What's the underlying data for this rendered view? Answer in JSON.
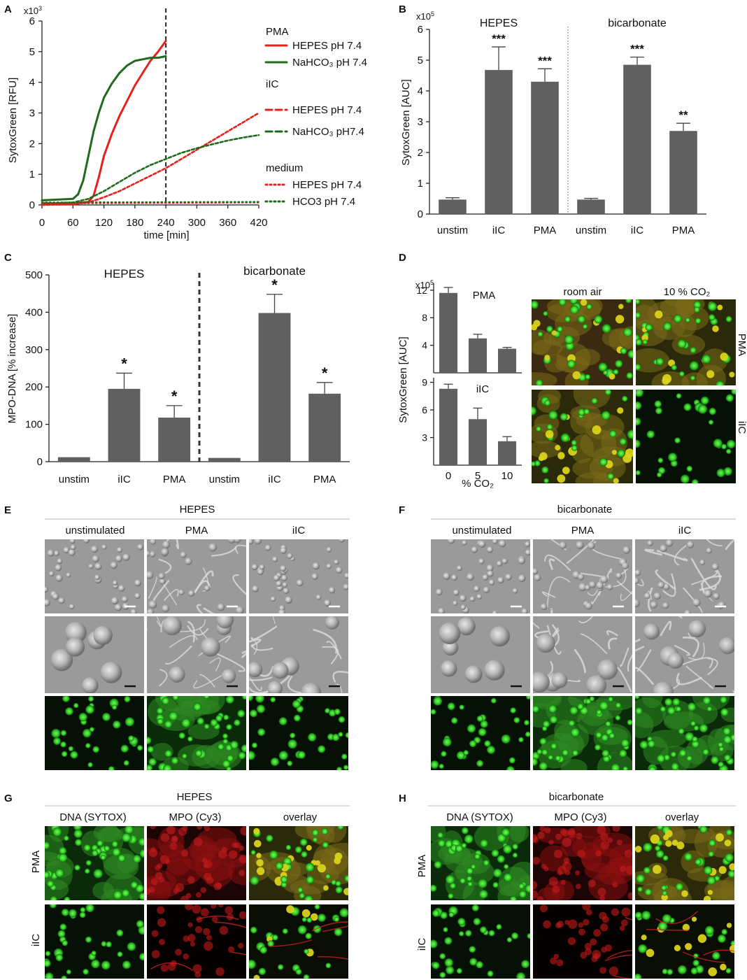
{
  "panels": {
    "A": {
      "letter": "A",
      "chart_data": {
        "type": "line",
        "ylabel": "SytoxGreen [RFU]",
        "xlabel": "time [min]",
        "y_multiplier": "x10",
        "y_multiplier_exp": "3",
        "xlim": [
          0,
          420
        ],
        "ylim": [
          0,
          6
        ],
        "xticks": [
          "0",
          "60",
          "120",
          "180",
          "240",
          "300",
          "360",
          "420"
        ],
        "yticks": [
          "0",
          "1",
          "2",
          "3",
          "4",
          "5",
          "6"
        ],
        "vline_x": 240,
        "legend_groups": [
          {
            "title": "PMA",
            "items": [
              {
                "label": "HEPES pH 7.4",
                "color": "#e8201c",
                "dash": "solid"
              },
              {
                "label": "NaHCO₃ pH 7.4",
                "color": "#1e6b1e",
                "dash": "solid"
              }
            ]
          },
          {
            "title": "iIC",
            "items": [
              {
                "label": "HEPES pH 7.4",
                "color": "#e8201c",
                "dash": "dashed"
              },
              {
                "label": "NaHCO₃ pH7.4",
                "color": "#1e6b1e",
                "dash": "dashed"
              }
            ]
          },
          {
            "title": "medium",
            "items": [
              {
                "label": "HEPES pH 7.4",
                "color": "#e8201c",
                "dash": "dotted"
              },
              {
                "label": "HCO3 pH 7.4",
                "color": "#1e6b1e",
                "dash": "dotted"
              }
            ]
          }
        ],
        "series": [
          {
            "name": "PMA HEPES pH 7.4",
            "color": "#e8201c",
            "dash": "solid",
            "x": [
              0,
              60,
              90,
              100,
              110,
              120,
              135,
              150,
              165,
              180,
              195,
              210,
              225,
              240
            ],
            "y": [
              0.05,
              0.05,
              0.1,
              0.3,
              0.9,
              1.6,
              2.3,
              2.9,
              3.4,
              3.9,
              4.3,
              4.7,
              5.0,
              5.35
            ]
          },
          {
            "name": "PMA NaHCO₃ pH 7.4",
            "color": "#1e6b1e",
            "dash": "solid",
            "x": [
              0,
              60,
              70,
              80,
              90,
              100,
              110,
              120,
              135,
              150,
              165,
              180,
              195,
              210,
              225,
              240
            ],
            "y": [
              0.15,
              0.2,
              0.35,
              0.8,
              1.6,
              2.4,
              3.0,
              3.5,
              3.95,
              4.3,
              4.55,
              4.7,
              4.75,
              4.8,
              4.8,
              4.85
            ]
          },
          {
            "name": "iIC HEPES pH 7.4",
            "color": "#e8201c",
            "dash": "dashed",
            "x": [
              0,
              60,
              90,
              120,
              150,
              180,
              210,
              240,
              270,
              300,
              330,
              360,
              390,
              420
            ],
            "y": [
              0,
              0.02,
              0.08,
              0.25,
              0.45,
              0.7,
              0.95,
              1.2,
              1.5,
              1.8,
              2.1,
              2.4,
              2.7,
              3.0
            ]
          },
          {
            "name": "iIC NaHCO₃ pH7.4",
            "color": "#1e6b1e",
            "dash": "dashed",
            "x": [
              0,
              60,
              90,
              120,
              150,
              180,
              210,
              240,
              270,
              300,
              330,
              360,
              390,
              420
            ],
            "y": [
              0.05,
              0.08,
              0.2,
              0.45,
              0.75,
              1.05,
              1.3,
              1.5,
              1.7,
              1.85,
              1.98,
              2.1,
              2.2,
              2.28
            ]
          },
          {
            "name": "medium HEPES pH 7.4",
            "color": "#e8201c",
            "dash": "dotted",
            "x": [
              0,
              420
            ],
            "y": [
              0.05,
              0.08
            ]
          },
          {
            "name": "medium HCO3 pH 7.4",
            "color": "#1e6b1e",
            "dash": "dotted",
            "x": [
              0,
              420
            ],
            "y": [
              0.08,
              0.1
            ]
          }
        ]
      }
    },
    "B": {
      "letter": "B",
      "chart_data": {
        "type": "bar",
        "ylabel": "SytoxGreen [AUC]",
        "y_multiplier": "x10",
        "y_multiplier_exp": "5",
        "ylim": [
          0,
          6
        ],
        "yticks": [
          "0",
          "1",
          "2",
          "3",
          "4",
          "5",
          "6"
        ],
        "group_labels": [
          "HEPES",
          "bicarbonate"
        ],
        "categories": [
          "unstim",
          "iIC",
          "PMA",
          "unstim",
          "iIC",
          "PMA"
        ],
        "values": [
          0.47,
          4.68,
          4.3,
          0.47,
          4.85,
          2.7
        ],
        "errors": [
          0.06,
          0.75,
          0.42,
          0.04,
          0.25,
          0.25
        ],
        "significance": [
          "",
          "***",
          "***",
          "",
          "***",
          "**"
        ]
      }
    },
    "C": {
      "letter": "C",
      "chart_data": {
        "type": "bar",
        "ylabel": "MPO-DNA [% increase]",
        "ylim": [
          0,
          500
        ],
        "yticks": [
          "0",
          "100",
          "200",
          "300",
          "400",
          "500"
        ],
        "group_labels": [
          "HEPES",
          "bicarbonate"
        ],
        "categories": [
          "unstim",
          "iIC",
          "PMA",
          "unstim",
          "iIC",
          "PMA"
        ],
        "values": [
          12,
          195,
          118,
          10,
          398,
          182
        ],
        "errors": [
          0,
          42,
          32,
          0,
          50,
          30
        ],
        "significance": [
          "",
          "*",
          "*",
          "",
          "*",
          "*"
        ]
      }
    },
    "D": {
      "letter": "D",
      "chart_data": [
        {
          "type": "bar",
          "title": "PMA",
          "y_multiplier": "x10",
          "y_multiplier_exp": "5",
          "ylim": [
            0,
            13
          ],
          "yticks": [
            "4",
            "8",
            "12"
          ],
          "categories": [
            "0",
            "5",
            "10"
          ],
          "values": [
            11.6,
            5.0,
            3.5
          ],
          "errors": [
            0.8,
            0.6,
            0.2
          ]
        },
        {
          "type": "bar",
          "title": "iIC",
          "ylim": [
            0,
            9.5
          ],
          "yticks": [
            "3",
            "6",
            "9"
          ],
          "categories": [
            "0",
            "5",
            "10"
          ],
          "values": [
            8.3,
            5.0,
            2.6
          ],
          "errors": [
            0.5,
            1.2,
            0.5
          ]
        }
      ],
      "ylabel": "SytoxGreen [AUC]",
      "xlabel": "% CO₂",
      "col_labels": [
        "room air",
        "10 % CO₂"
      ],
      "row_labels": [
        "PMA",
        "iIC"
      ]
    },
    "E": {
      "letter": "E",
      "title": "HEPES",
      "cols": [
        "unstimulated",
        "PMA",
        "iIC"
      ]
    },
    "F": {
      "letter": "F",
      "title": "bicarbonate",
      "cols": [
        "unstimulated",
        "PMA",
        "iIC"
      ]
    },
    "G": {
      "letter": "G",
      "title": "HEPES",
      "cols": [
        "DNA (SYTOX)",
        "MPO (Cy3)",
        "overlay"
      ],
      "rows": [
        "PMA",
        "iIC"
      ]
    },
    "H": {
      "letter": "H",
      "title": "bicarbonate",
      "cols": [
        "DNA (SYTOX)",
        "MPO (Cy3)",
        "overlay"
      ],
      "rows": [
        "PMA",
        "iIC"
      ]
    }
  }
}
